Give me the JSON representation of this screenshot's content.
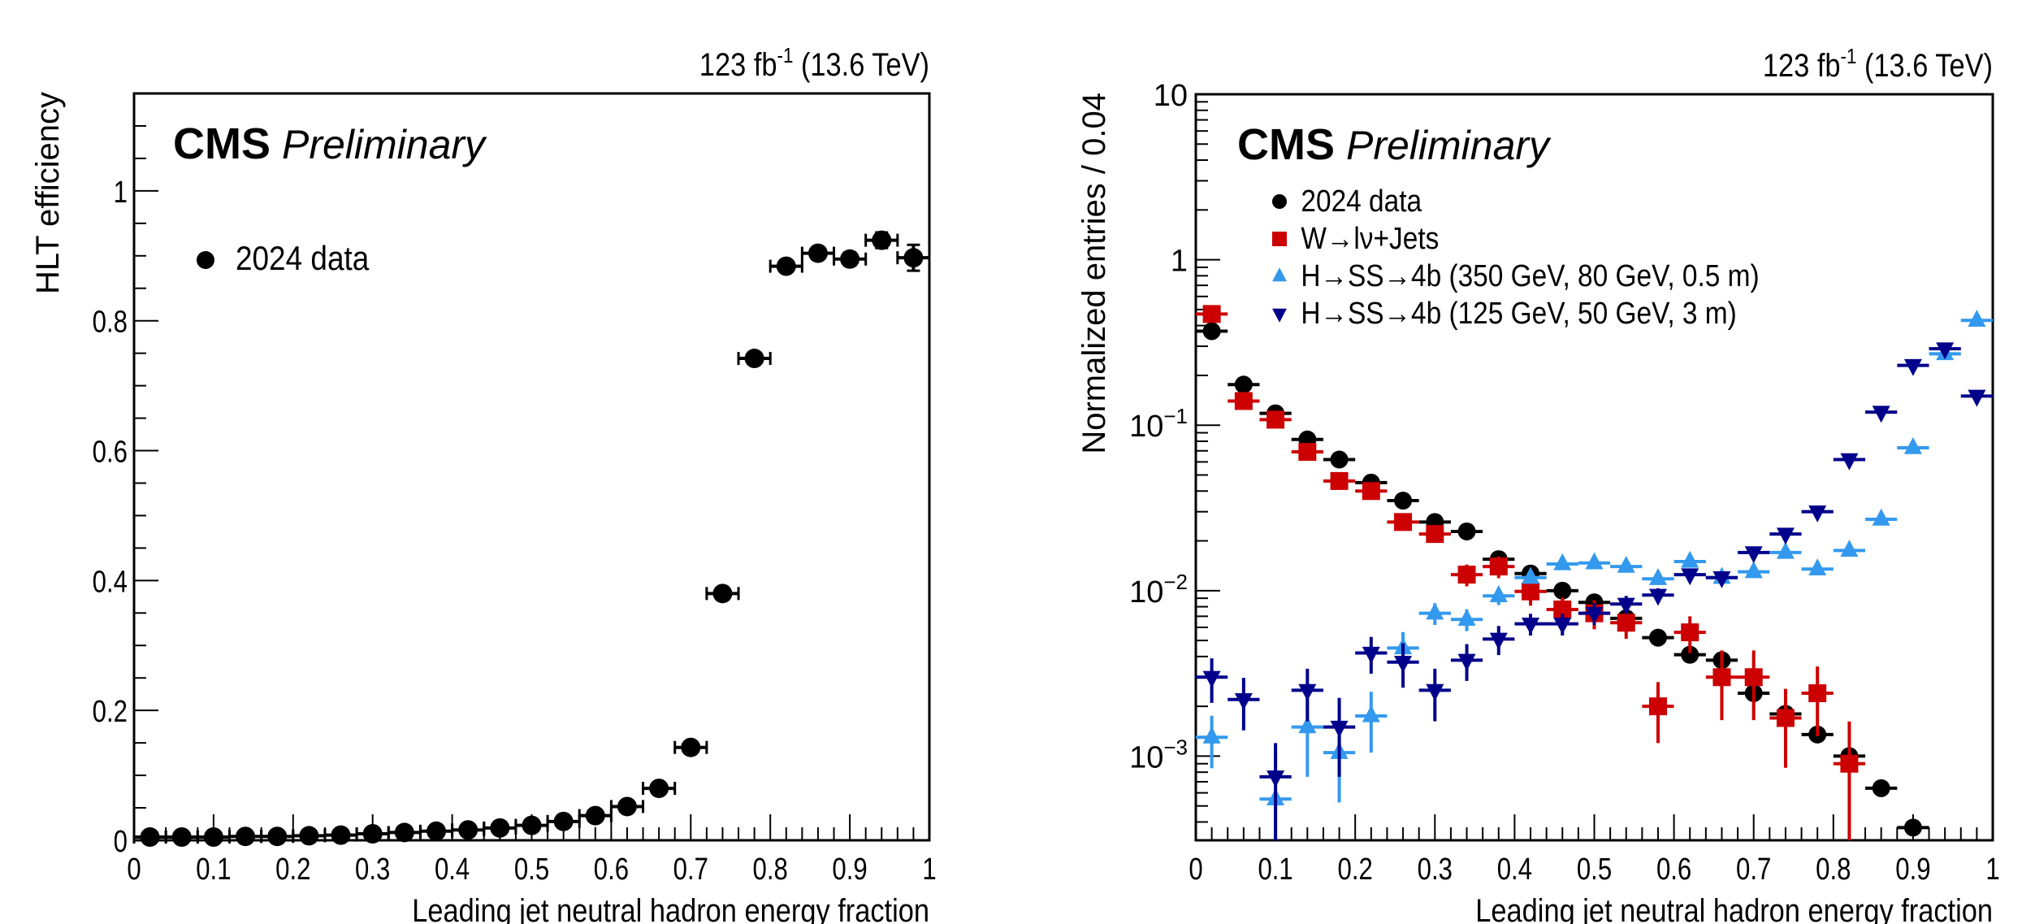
{
  "chart_data": [
    {
      "type": "scatter",
      "panel": "left",
      "lumi_label": "123 fb",
      "lumi_exponent": "-1",
      "energy_label": " (13.6 TeV)",
      "cms_label": "CMS",
      "preliminary_label": "Preliminary",
      "xlabel": "Leading jet neutral hadron energy fraction",
      "ylabel": "HLT efficiency",
      "xlim": [
        0,
        1
      ],
      "ylim": [
        0,
        1.15
      ],
      "x_scale": "linear",
      "y_scale": "linear",
      "x_ticks": [
        "0",
        "0.1",
        "0.2",
        "0.3",
        "0.4",
        "0.5",
        "0.6",
        "0.7",
        "0.8",
        "0.9",
        "1"
      ],
      "y_ticks": [
        "0",
        "0.2",
        "0.4",
        "0.6",
        "0.8",
        "1"
      ],
      "legend_position": "top-left",
      "grid": false,
      "bin_half_width": 0.02,
      "series": [
        {
          "name": "2024 data",
          "marker": "circle",
          "color": "#000000",
          "x": [
            0.02,
            0.06,
            0.1,
            0.14,
            0.18,
            0.22,
            0.26,
            0.3,
            0.34,
            0.38,
            0.42,
            0.46,
            0.5,
            0.54,
            0.58,
            0.62,
            0.66,
            0.7,
            0.74,
            0.78,
            0.82,
            0.86,
            0.9,
            0.94,
            0.98
          ],
          "values": [
            0.005,
            0.005,
            0.005,
            0.006,
            0.006,
            0.007,
            0.008,
            0.01,
            0.012,
            0.014,
            0.016,
            0.019,
            0.023,
            0.029,
            0.038,
            0.052,
            0.08,
            0.143,
            0.38,
            0.742,
            0.884,
            0.904,
            0.895,
            0.924,
            0.897
          ],
          "yerr": [
            0.002,
            0.002,
            0.007,
            0.002,
            0.002,
            0.007,
            0.002,
            0.007,
            0.002,
            0.003,
            0.007,
            0.004,
            0.005,
            0.005,
            0.006,
            0.004,
            0.004,
            0.005,
            0.006,
            0.006,
            0.008,
            0.008,
            0.01,
            0.012,
            0.02
          ]
        }
      ]
    },
    {
      "type": "scatter",
      "panel": "right",
      "lumi_label": "123 fb",
      "lumi_exponent": "-1",
      "energy_label": " (13.6 TeV)",
      "cms_label": "CMS",
      "preliminary_label": "Preliminary",
      "xlabel": "Leading jet neutral hadron energy fraction",
      "ylabel": "Normalized entries / 0.04",
      "xlim": [
        0,
        1
      ],
      "ylim": [
        0.00031,
        10
      ],
      "x_scale": "linear",
      "y_scale": "log",
      "x_ticks": [
        "0",
        "0.1",
        "0.2",
        "0.3",
        "0.4",
        "0.5",
        "0.6",
        "0.7",
        "0.8",
        "0.9",
        "1"
      ],
      "y_ticks": [
        {
          "base": "10",
          "exp": ""
        },
        {
          "base": "1",
          "exp": ""
        },
        {
          "base": "10",
          "exp": "−1"
        },
        {
          "base": "10",
          "exp": "−2"
        },
        {
          "base": "10",
          "exp": "−3"
        }
      ],
      "legend_position": "top-left",
      "grid": false,
      "bin_half_width": 0.02,
      "series": [
        {
          "name": "2024 data",
          "marker": "circle",
          "color": "#000000",
          "x": [
            0.02,
            0.06,
            0.1,
            0.14,
            0.18,
            0.22,
            0.26,
            0.3,
            0.34,
            0.38,
            0.42,
            0.46,
            0.5,
            0.54,
            0.58,
            0.62,
            0.66,
            0.7,
            0.74,
            0.78,
            0.82,
            0.86,
            0.9
          ],
          "values": [
            0.37,
            0.176,
            0.118,
            0.082,
            0.062,
            0.045,
            0.035,
            0.026,
            0.0228,
            0.0155,
            0.0127,
            0.01,
            0.0085,
            0.0068,
            0.0052,
            0.0041,
            0.0038,
            0.0024,
            0.0018,
            0.00135,
            0.001,
            0.00064,
            0.00037
          ]
        },
        {
          "name": "W→lν+Jets",
          "marker": "square",
          "color": "#cc0000",
          "x": [
            0.02,
            0.06,
            0.1,
            0.14,
            0.18,
            0.22,
            0.26,
            0.3,
            0.34,
            0.38,
            0.42,
            0.46,
            0.5,
            0.54,
            0.58,
            0.62,
            0.66,
            0.7,
            0.74,
            0.78,
            0.82
          ],
          "values": [
            0.47,
            0.14,
            0.108,
            0.069,
            0.046,
            0.04,
            0.026,
            0.022,
            0.0125,
            0.014,
            0.0099,
            0.0077,
            0.0073,
            0.0064,
            0.002,
            0.0056,
            0.003,
            0.003,
            0.0017,
            0.0024,
            0.0009
          ],
          "rel_err": [
            0.04,
            0.05,
            0.05,
            0.06,
            0.06,
            0.08,
            0.08,
            0.1,
            0.15,
            0.15,
            0.18,
            0.18,
            0.2,
            0.2,
            0.4,
            0.25,
            0.45,
            0.45,
            0.5,
            0.45,
            0.8
          ]
        },
        {
          "name": "H→SS→4b (350 GeV, 80 GeV, 0.5 m)",
          "marker": "triangle-up",
          "color": "#3399ee",
          "x": [
            0.02,
            0.1,
            0.14,
            0.18,
            0.22,
            0.26,
            0.3,
            0.34,
            0.38,
            0.42,
            0.46,
            0.5,
            0.54,
            0.58,
            0.62,
            0.66,
            0.7,
            0.74,
            0.78,
            0.82,
            0.86,
            0.9,
            0.94,
            0.98
          ],
          "values": [
            0.0013,
            0.00055,
            0.0015,
            0.00105,
            0.00175,
            0.0045,
            0.0073,
            0.0067,
            0.0093,
            0.012,
            0.0145,
            0.0147,
            0.014,
            0.0118,
            0.015,
            0.012,
            0.013,
            0.017,
            0.0135,
            0.0175,
            0.027,
            0.073,
            0.27,
            0.43
          ],
          "rel_err": [
            0.35,
            0.9,
            0.5,
            0.5,
            0.4,
            0.25,
            0.15,
            0.15,
            0.12,
            0.08,
            0.05,
            0.05,
            0.05,
            0.05,
            0.05,
            0.05,
            0.05,
            0.05,
            0.05,
            0.05,
            0.04,
            0.03,
            0.02,
            0.02
          ]
        },
        {
          "name": "H→SS→4b (125 GeV, 50 GeV, 3 m)",
          "marker": "triangle-down",
          "color": "#00008b",
          "x": [
            0.02,
            0.06,
            0.1,
            0.14,
            0.18,
            0.22,
            0.26,
            0.3,
            0.34,
            0.38,
            0.42,
            0.46,
            0.5,
            0.54,
            0.58,
            0.62,
            0.66,
            0.7,
            0.74,
            0.78,
            0.82,
            0.86,
            0.9,
            0.94,
            0.98
          ],
          "values": [
            0.003,
            0.0022,
            0.00075,
            0.0025,
            0.0015,
            0.0042,
            0.0037,
            0.0025,
            0.0038,
            0.0051,
            0.0063,
            0.0063,
            0.0073,
            0.0083,
            0.0094,
            0.0125,
            0.012,
            0.017,
            0.022,
            0.03,
            0.062,
            0.12,
            0.23,
            0.29,
            0.15
          ],
          "rel_err": [
            0.3,
            0.35,
            0.6,
            0.35,
            0.5,
            0.25,
            0.3,
            0.35,
            0.25,
            0.2,
            0.15,
            0.15,
            0.15,
            0.12,
            0.1,
            0.08,
            0.08,
            0.06,
            0.05,
            0.04,
            0.03,
            0.02,
            0.02,
            0.02,
            0.02
          ]
        }
      ]
    }
  ]
}
